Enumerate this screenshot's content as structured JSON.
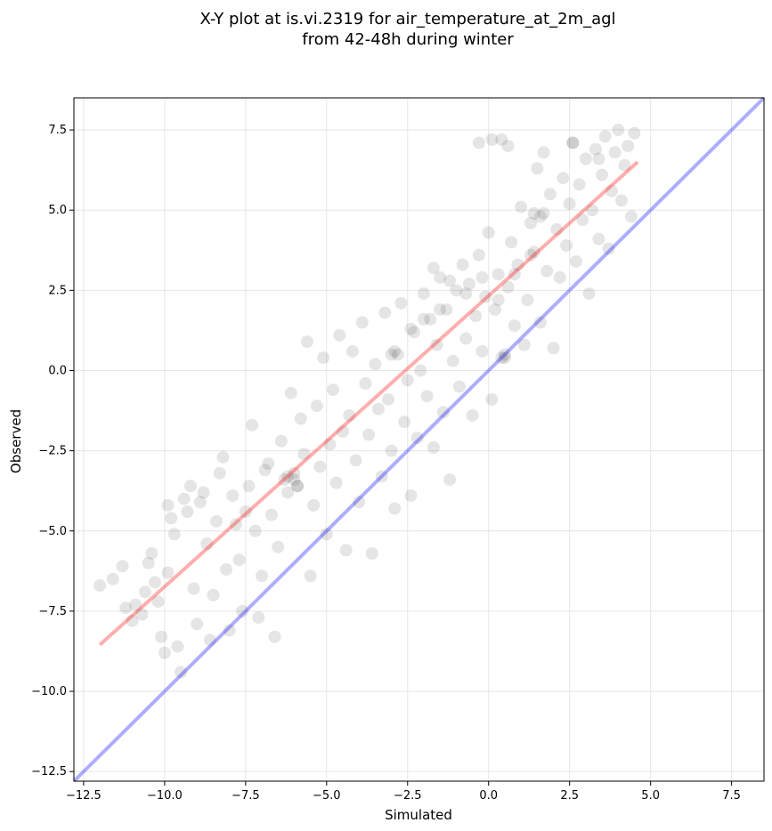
{
  "chart_data": {
    "type": "scatter",
    "title_lines": [
      "X-Y plot at is.vi.2319 for air_temperature_at_2m_agl",
      "from 42-48h during winter"
    ],
    "xlabel": "Simulated",
    "ylabel": "Observed",
    "xlim": [
      -12.8,
      8.5
    ],
    "ylim": [
      -12.8,
      8.5
    ],
    "xticks": [
      -12.5,
      -10.0,
      -7.5,
      -5.0,
      -2.5,
      0.0,
      2.5,
      5.0,
      7.5
    ],
    "yticks": [
      -12.5,
      -10.0,
      -7.5,
      -5.0,
      -2.5,
      0.0,
      2.5,
      5.0,
      7.5
    ],
    "xtick_labels": [
      "−12.5",
      "−10.0",
      "−7.5",
      "−5.0",
      "−2.5",
      "0.0",
      "2.5",
      "5.0",
      "7.5"
    ],
    "ytick_labels": [
      "−12.5",
      "−10.0",
      "−7.5",
      "−5.0",
      "−2.5",
      "0.0",
      "2.5",
      "5.0",
      "7.5"
    ],
    "grid": true,
    "points_color": "#000000",
    "points": [
      [
        -12.0,
        -6.7
      ],
      [
        -11.6,
        -6.5
      ],
      [
        -11.3,
        -6.1
      ],
      [
        -11.2,
        -7.4
      ],
      [
        -11.0,
        -7.8
      ],
      [
        -10.9,
        -7.3
      ],
      [
        -10.7,
        -7.6
      ],
      [
        -10.6,
        -6.9
      ],
      [
        -10.5,
        -6.0
      ],
      [
        -10.4,
        -5.7
      ],
      [
        -10.3,
        -6.6
      ],
      [
        -10.2,
        -7.2
      ],
      [
        -10.1,
        -8.3
      ],
      [
        -10.0,
        -8.8
      ],
      [
        -9.9,
        -6.3
      ],
      [
        -9.9,
        -4.2
      ],
      [
        -9.8,
        -4.6
      ],
      [
        -9.7,
        -5.1
      ],
      [
        -9.6,
        -8.6
      ],
      [
        -9.5,
        -9.4
      ],
      [
        -9.4,
        -4.0
      ],
      [
        -9.3,
        -4.4
      ],
      [
        -9.2,
        -3.6
      ],
      [
        -9.1,
        -6.8
      ],
      [
        -9.0,
        -7.9
      ],
      [
        -8.9,
        -4.1
      ],
      [
        -8.8,
        -3.8
      ],
      [
        -8.7,
        -5.4
      ],
      [
        -8.6,
        -8.4
      ],
      [
        -8.5,
        -7.0
      ],
      [
        -8.4,
        -4.7
      ],
      [
        -8.3,
        -3.2
      ],
      [
        -8.2,
        -2.7
      ],
      [
        -8.1,
        -6.2
      ],
      [
        -8.0,
        -8.1
      ],
      [
        -7.9,
        -3.9
      ],
      [
        -7.8,
        -4.8
      ],
      [
        -7.7,
        -5.9
      ],
      [
        -7.6,
        -7.5
      ],
      [
        -7.5,
        -4.4
      ],
      [
        -7.4,
        -3.6
      ],
      [
        -7.3,
        -1.7
      ],
      [
        -7.2,
        -5.0
      ],
      [
        -7.1,
        -7.7
      ],
      [
        -7.0,
        -6.4
      ],
      [
        -6.9,
        -3.1
      ],
      [
        -6.8,
        -2.9
      ],
      [
        -6.7,
        -4.5
      ],
      [
        -6.6,
        -8.3
      ],
      [
        -6.5,
        -5.5
      ],
      [
        -6.4,
        -2.2
      ],
      [
        -6.3,
        -3.4
      ],
      [
        -6.2,
        -3.8
      ],
      [
        -6.1,
        -0.7
      ],
      [
        -6.0,
        -3.2
      ],
      [
        -5.9,
        -3.6
      ],
      [
        -5.8,
        -1.5
      ],
      [
        -5.7,
        -2.6
      ],
      [
        -5.6,
        0.9
      ],
      [
        -5.5,
        -6.4
      ],
      [
        -5.4,
        -4.2
      ],
      [
        -5.3,
        -1.1
      ],
      [
        -5.2,
        -3.0
      ],
      [
        -5.1,
        0.4
      ],
      [
        -5.0,
        -5.1
      ],
      [
        -4.9,
        -2.3
      ],
      [
        -4.8,
        -0.6
      ],
      [
        -4.7,
        -3.5
      ],
      [
        -4.6,
        1.1
      ],
      [
        -4.5,
        -1.9
      ],
      [
        -4.4,
        -5.6
      ],
      [
        -4.3,
        -1.4
      ],
      [
        -4.2,
        0.6
      ],
      [
        -4.1,
        -2.8
      ],
      [
        -4.0,
        -4.1
      ],
      [
        -3.9,
        1.5
      ],
      [
        -3.8,
        -0.4
      ],
      [
        -3.7,
        -2.0
      ],
      [
        -3.6,
        -5.7
      ],
      [
        -3.5,
        0.2
      ],
      [
        -3.4,
        -1.2
      ],
      [
        -3.3,
        -3.3
      ],
      [
        -3.2,
        1.8
      ],
      [
        -3.1,
        -0.9
      ],
      [
        -3.0,
        -2.5
      ],
      [
        -2.9,
        -4.3
      ],
      [
        -2.8,
        0.5
      ],
      [
        -2.7,
        2.1
      ],
      [
        -2.6,
        -1.6
      ],
      [
        -2.5,
        -0.3
      ],
      [
        -2.4,
        -3.9
      ],
      [
        -2.3,
        1.2
      ],
      [
        -2.2,
        -2.1
      ],
      [
        -2.1,
        0.0
      ],
      [
        -2.0,
        2.4
      ],
      [
        -1.9,
        -0.8
      ],
      [
        -1.8,
        1.6
      ],
      [
        -1.7,
        -2.4
      ],
      [
        -1.6,
        0.8
      ],
      [
        -1.5,
        2.9
      ],
      [
        -1.4,
        -1.3
      ],
      [
        -1.3,
        1.9
      ],
      [
        -1.2,
        -3.4
      ],
      [
        -1.1,
        0.3
      ],
      [
        -1.0,
        2.5
      ],
      [
        -0.9,
        -0.5
      ],
      [
        -0.8,
        3.3
      ],
      [
        -0.7,
        1.0
      ],
      [
        -0.6,
        2.7
      ],
      [
        -0.5,
        -1.4
      ],
      [
        -0.4,
        1.7
      ],
      [
        -0.3,
        3.6
      ],
      [
        -0.2,
        0.6
      ],
      [
        -0.1,
        2.3
      ],
      [
        0.0,
        4.3
      ],
      [
        0.1,
        -0.9
      ],
      [
        0.2,
        1.9
      ],
      [
        0.3,
        3.0
      ],
      [
        0.4,
        7.2
      ],
      [
        0.5,
        0.4
      ],
      [
        0.6,
        2.6
      ],
      [
        0.7,
        4.0
      ],
      [
        0.8,
        1.4
      ],
      [
        0.9,
        3.3
      ],
      [
        1.0,
        5.1
      ],
      [
        1.1,
        0.8
      ],
      [
        1.2,
        2.2
      ],
      [
        1.3,
        4.6
      ],
      [
        1.4,
        3.7
      ],
      [
        1.5,
        6.3
      ],
      [
        1.6,
        1.5
      ],
      [
        1.7,
        4.9
      ],
      [
        1.8,
        3.1
      ],
      [
        1.9,
        5.5
      ],
      [
        2.0,
        0.7
      ],
      [
        2.1,
        4.4
      ],
      [
        2.2,
        2.9
      ],
      [
        2.3,
        6.0
      ],
      [
        2.4,
        3.9
      ],
      [
        2.5,
        5.2
      ],
      [
        2.6,
        7.1
      ],
      [
        2.7,
        3.4
      ],
      [
        2.8,
        5.8
      ],
      [
        2.9,
        4.7
      ],
      [
        3.0,
        6.6
      ],
      [
        3.1,
        2.4
      ],
      [
        3.2,
        5.0
      ],
      [
        3.3,
        6.9
      ],
      [
        3.4,
        4.1
      ],
      [
        3.5,
        6.1
      ],
      [
        3.6,
        7.3
      ],
      [
        3.7,
        3.8
      ],
      [
        3.8,
        5.6
      ],
      [
        3.9,
        6.8
      ],
      [
        4.0,
        7.5
      ],
      [
        4.1,
        5.3
      ],
      [
        4.2,
        6.4
      ],
      [
        4.3,
        7.0
      ],
      [
        4.4,
        4.8
      ],
      [
        4.5,
        7.4
      ],
      [
        -0.3,
        7.1
      ],
      [
        0.1,
        7.2
      ],
      [
        0.6,
        7.0
      ],
      [
        1.7,
        6.8
      ],
      [
        2.6,
        7.1
      ],
      [
        -1.7,
        3.2
      ],
      [
        -1.2,
        2.8
      ],
      [
        -0.7,
        2.4
      ],
      [
        -0.2,
        2.9
      ],
      [
        0.3,
        2.2
      ],
      [
        0.8,
        3.0
      ],
      [
        1.3,
        3.6
      ],
      [
        -2.4,
        1.3
      ],
      [
        -2.0,
        1.6
      ],
      [
        -1.5,
        1.9
      ],
      [
        -6.0,
        -3.4
      ],
      [
        -6.2,
        -3.3
      ],
      [
        -5.9,
        -3.6
      ],
      [
        -3.0,
        0.5
      ],
      [
        -2.9,
        0.6
      ],
      [
        0.5,
        0.5
      ],
      [
        0.4,
        0.4
      ],
      [
        1.4,
        4.9
      ],
      [
        1.6,
        4.8
      ],
      [
        3.4,
        6.6
      ]
    ],
    "regression_line": {
      "color": "#ff0000",
      "points": [
        [
          -12.0,
          -8.55
        ],
        [
          4.6,
          6.5
        ]
      ]
    },
    "identity_line": {
      "color": "#0000ff",
      "points": [
        [
          -12.8,
          -12.8
        ],
        [
          8.5,
          8.5
        ]
      ]
    }
  }
}
